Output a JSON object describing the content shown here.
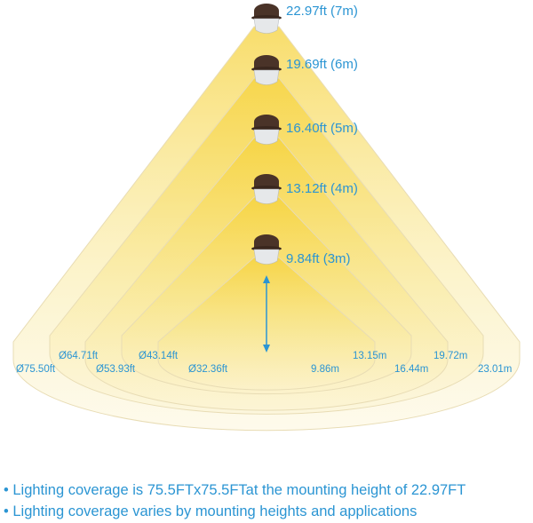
{
  "colors": {
    "accent": "#2b95d3",
    "light": "#f7d84a",
    "lamp_body": "#4a3328"
  },
  "heights": [
    {
      "label": "22.97ft (7m)"
    },
    {
      "label": "19.69ft (6m)"
    },
    {
      "label": "16.40ft (5m)"
    },
    {
      "label": "13.12ft (4m)"
    },
    {
      "label": "9.84ft (3m)"
    }
  ],
  "diameters_ft": [
    "Ø75.50ft",
    "Ø64.71ft",
    "Ø53.93ft",
    "Ø43.14ft",
    "Ø32.36ft"
  ],
  "diameters_m": [
    "23.01m",
    "19.72m",
    "16.44m",
    "13.15m",
    "9.86m"
  ],
  "notes": [
    "• Lighting coverage is 75.5FTx75.5FTat the mounting height of 22.97FT",
    "• Lighting coverage varies by mounting heights and applications"
  ]
}
